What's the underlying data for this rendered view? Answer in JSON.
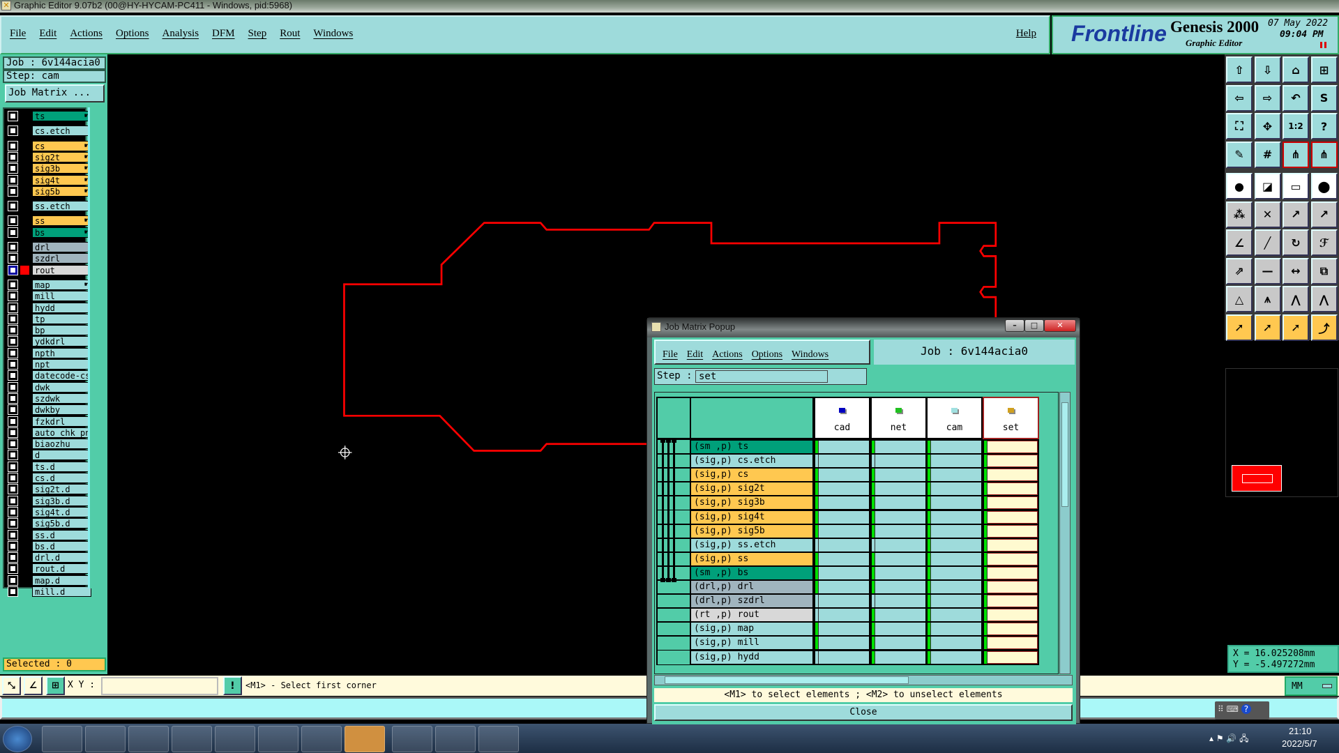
{
  "window_title": "Graphic Editor 9.07b2 (00@HY-HYCAM-PC411 - Windows, pid:5968)",
  "menu": [
    "File",
    "Edit",
    "Actions",
    "Options",
    "Analysis",
    "DFM",
    "Step",
    "Rout",
    "Windows"
  ],
  "help": "Help",
  "logo": {
    "brand": "Frontline",
    "product": "Genesis 2000",
    "subtitle": "Graphic Editor",
    "date": "07 May 2022",
    "time": "09:04 PM"
  },
  "left_panel": {
    "job": "Job  : 6v144acia0",
    "step": "Step: cam",
    "job_matrix_button": "Job Matrix ...",
    "selected": "Selected : 0"
  },
  "layers": [
    {
      "name": "ts",
      "color": "#00a07a",
      "affected": true
    },
    {
      "name": "cs.etch",
      "color": "#9edbdb",
      "affected": false
    },
    {
      "name": "cs",
      "color": "#ffc850",
      "affected": true
    },
    {
      "name": "sig2t",
      "color": "#ffc850",
      "affected": true
    },
    {
      "name": "sig3b",
      "color": "#ffc850",
      "affected": true
    },
    {
      "name": "sig4t",
      "color": "#ffc850",
      "affected": true
    },
    {
      "name": "sig5b",
      "color": "#ffc850",
      "affected": true
    },
    {
      "name": "ss.etch",
      "color": "#9edbdb",
      "affected": false
    },
    {
      "name": "ss",
      "color": "#ffc850",
      "affected": true
    },
    {
      "name": "bs",
      "color": "#00a07a",
      "affected": true
    },
    {
      "name": "drl",
      "color": "#a0b4be",
      "affected": false
    },
    {
      "name": "szdrl",
      "color": "#a0b4be",
      "affected": false
    },
    {
      "name": "rout",
      "color": "#d8d8d8",
      "affected": false,
      "displayed": true,
      "display_color": "#ff0000"
    },
    {
      "name": "map",
      "color": "#9edbdb",
      "affected": true
    },
    {
      "name": "mill",
      "color": "#9edbdb"
    },
    {
      "name": "hydd",
      "color": "#9edbdb"
    },
    {
      "name": "tp",
      "color": "#9edbdb"
    },
    {
      "name": "bp",
      "color": "#9edbdb"
    },
    {
      "name": "ydkdrl",
      "color": "#9edbdb"
    },
    {
      "name": "npth",
      "color": "#9edbdb"
    },
    {
      "name": "npt",
      "color": "#9edbdb"
    },
    {
      "name": "datecode-cs",
      "color": "#9edbdb"
    },
    {
      "name": "dwk",
      "color": "#9edbdb"
    },
    {
      "name": "szdwk",
      "color": "#9edbdb"
    },
    {
      "name": "dwkby",
      "color": "#9edbdb"
    },
    {
      "name": "fzkdrl",
      "color": "#9edbdb"
    },
    {
      "name": "auto_chk_pnl",
      "color": "#9edbdb"
    },
    {
      "name": "biaozhu",
      "color": "#9edbdb"
    },
    {
      "name": "d",
      "color": "#9edbdb"
    },
    {
      "name": "ts.d",
      "color": "#9edbdb"
    },
    {
      "name": "cs.d",
      "color": "#9edbdb"
    },
    {
      "name": "sig2t.d",
      "color": "#9edbdb"
    },
    {
      "name": "sig3b.d",
      "color": "#9edbdb"
    },
    {
      "name": "sig4t.d",
      "color": "#9edbdb"
    },
    {
      "name": "sig5b.d",
      "color": "#9edbdb"
    },
    {
      "name": "ss.d",
      "color": "#9edbdb"
    },
    {
      "name": "bs.d",
      "color": "#9edbdb"
    },
    {
      "name": "drl.d",
      "color": "#9edbdb"
    },
    {
      "name": "rout.d",
      "color": "#9edbdb"
    },
    {
      "name": "map.d",
      "color": "#9edbdb"
    },
    {
      "name": "mill.d",
      "color": "#9edbdb"
    }
  ],
  "toolbar_icons": [
    "move-up-icon",
    "move-down-icon",
    "home-icon",
    "xy-window-icon",
    "move-left-icon",
    "move-right-icon",
    "undo-view-icon",
    "s-curve-icon",
    "zoom-fit-icon",
    "zoom-center-icon",
    "scale-1-2-icon",
    "help-query-icon",
    "tools-palette-icon",
    "grid-icon",
    "snap-net-icon",
    "snap-net-alt-icon",
    "add-pad-icon",
    "scale-shape-icon",
    "ruler-icon",
    "pad-select-icon",
    "connect-points-icon",
    "delete-point-icon",
    "move-point-icon",
    "move-point-alt-icon",
    "line-angle-icon",
    "line-move-icon",
    "rotate-icon",
    "mirror-icon",
    "transform-icon",
    "line-split-icon",
    "measure-icon",
    "shapes-icon",
    "triangle-icon",
    "arc-icon",
    "arch-icon",
    "arch-alt-icon",
    "select-pointer-icon",
    "select-box-icon",
    "select-polygon-icon",
    "select-net-icon"
  ],
  "coords": {
    "x": "X  =  16.025208mm",
    "y": "Y  = -5.497272mm"
  },
  "bottom": {
    "xy_label": "X Y :",
    "xy_value": "",
    "prompt": "<M1> - Select first corner",
    "units": "MM"
  },
  "popup": {
    "title": "Job Matrix Popup",
    "menu": [
      "File",
      "Edit",
      "Actions",
      "Options",
      "Windows"
    ],
    "job": "Job  :  6v144acia0",
    "step_label": "Step :",
    "step_value": "set",
    "steps": [
      {
        "name": "cad",
        "color": "#0000c0"
      },
      {
        "name": "net",
        "color": "#20c020"
      },
      {
        "name": "cam",
        "color": "#a0e0e0"
      },
      {
        "name": "set",
        "color": "#d0a020",
        "active": true
      }
    ],
    "rows": [
      {
        "label": "(sm ,p) ts",
        "color": "#00a07a",
        "cells": [
          1,
          1,
          1,
          1
        ]
      },
      {
        "label": "(sig,p) cs.etch",
        "color": "#9edbdb",
        "cells": [
          0,
          0,
          1,
          1
        ]
      },
      {
        "label": "(sig,p) cs",
        "color": "#ffc850",
        "cells": [
          1,
          1,
          1,
          1
        ]
      },
      {
        "label": "(sig,p) sig2t",
        "color": "#ffc850",
        "cells": [
          1,
          1,
          1,
          1
        ]
      },
      {
        "label": "(sig,p) sig3b",
        "color": "#ffc850",
        "cells": [
          1,
          1,
          1,
          1
        ]
      },
      {
        "label": "(sig,p) sig4t",
        "color": "#ffc850",
        "cells": [
          1,
          1,
          1,
          1
        ]
      },
      {
        "label": "(sig,p) sig5b",
        "color": "#ffc850",
        "cells": [
          1,
          1,
          1,
          1
        ]
      },
      {
        "label": "(sig,p) ss.etch",
        "color": "#9edbdb",
        "cells": [
          0,
          0,
          1,
          1
        ]
      },
      {
        "label": "(sig,p) ss",
        "color": "#ffc850",
        "cells": [
          1,
          1,
          1,
          1
        ]
      },
      {
        "label": "(sm ,p) bs",
        "color": "#00a07a",
        "cells": [
          1,
          1,
          1,
          1
        ]
      },
      {
        "label": "(drl,p) drl",
        "color": "#a0b4be",
        "cells": [
          1,
          1,
          1,
          1
        ]
      },
      {
        "label": "(drl,p) szdrl",
        "color": "#a0b4be",
        "cells": [
          0,
          0,
          1,
          1
        ]
      },
      {
        "label": "(rt ,p) rout",
        "color": "#d8d8d8",
        "cells": [
          0,
          1,
          1,
          1
        ]
      },
      {
        "label": "(sig,p) map",
        "color": "#9edbdb",
        "cells": [
          1,
          1,
          1,
          1
        ]
      },
      {
        "label": "(sig,p) mill",
        "color": "#9edbdb",
        "cells": [
          1,
          1,
          1,
          1
        ]
      },
      {
        "label": "(sig,p) hydd",
        "color": "#9edbdb",
        "cells": [
          0,
          1,
          1,
          1
        ]
      }
    ],
    "message": "<M1> to select elements ; <M2> to unselect elements",
    "close": "Close"
  },
  "taskbar": {
    "apps": [
      "start-button",
      "shell-app",
      "notepad-app",
      "g-app",
      "save-app",
      "p-app",
      "feather-app",
      "genesis-app",
      "x-app",
      "word-app",
      "excel-app",
      "genesis-alt-app"
    ],
    "time": "21:10",
    "date": "2022/5/7"
  },
  "colors": {
    "outline": "#ff0000",
    "panel": "#52cca8",
    "field": "#9edbdb",
    "signal": "#ffc850",
    "mask": "#00a07a"
  }
}
